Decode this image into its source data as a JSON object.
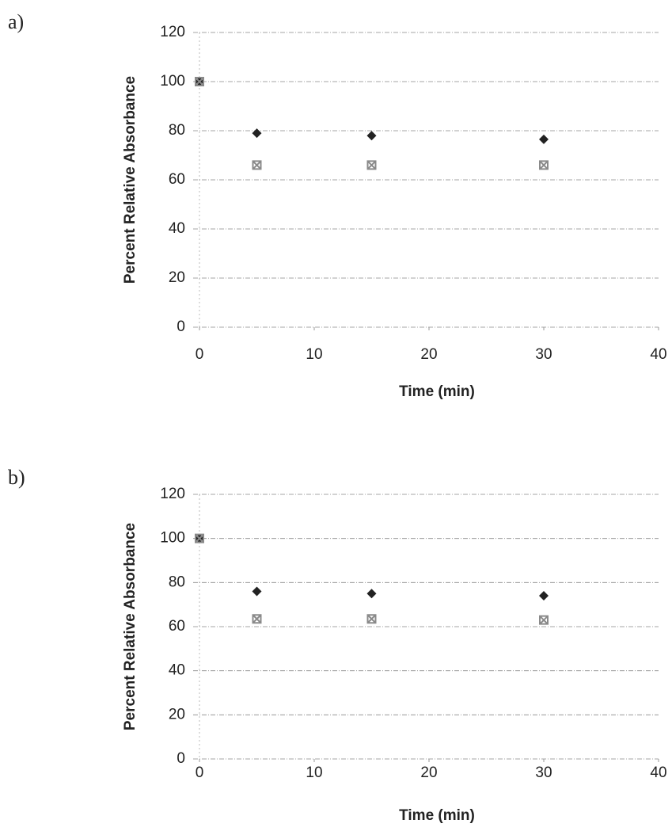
{
  "chart_data": [
    {
      "type": "scatter",
      "panel_label": "a)",
      "xlabel": "Time (min)",
      "ylabel": "Percent Relative Absorbance",
      "x": [
        0,
        5,
        15,
        30
      ],
      "series": [
        {
          "color": "#222222",
          "marker": "diamond",
          "values": [
            100,
            79,
            78,
            76.5
          ]
        },
        {
          "color": "#8a8a8a",
          "marker": "cross",
          "values": [
            100,
            66,
            66,
            66
          ]
        }
      ],
      "xlim": [
        0,
        40
      ],
      "xticks": [
        0,
        10,
        20,
        30,
        40
      ],
      "ylim": [
        0,
        120
      ],
      "yticks": [
        0,
        20,
        40,
        60,
        80,
        100,
        120
      ],
      "grid": true
    },
    {
      "type": "scatter",
      "panel_label": "b)",
      "xlabel": "Time (min)",
      "ylabel": "Percent Relative Absorbance",
      "x": [
        0,
        5,
        15,
        30
      ],
      "series": [
        {
          "color": "#222222",
          "marker": "diamond",
          "values": [
            100,
            76,
            75,
            74
          ]
        },
        {
          "color": "#8a8a8a",
          "marker": "cross",
          "values": [
            100,
            63.5,
            63.5,
            63
          ]
        }
      ],
      "xlim": [
        0,
        40
      ],
      "xticks": [
        0,
        10,
        20,
        30,
        40
      ],
      "ylim": [
        0,
        120
      ],
      "yticks": [
        0,
        20,
        40,
        60,
        80,
        100,
        120
      ],
      "grid": true
    }
  ]
}
